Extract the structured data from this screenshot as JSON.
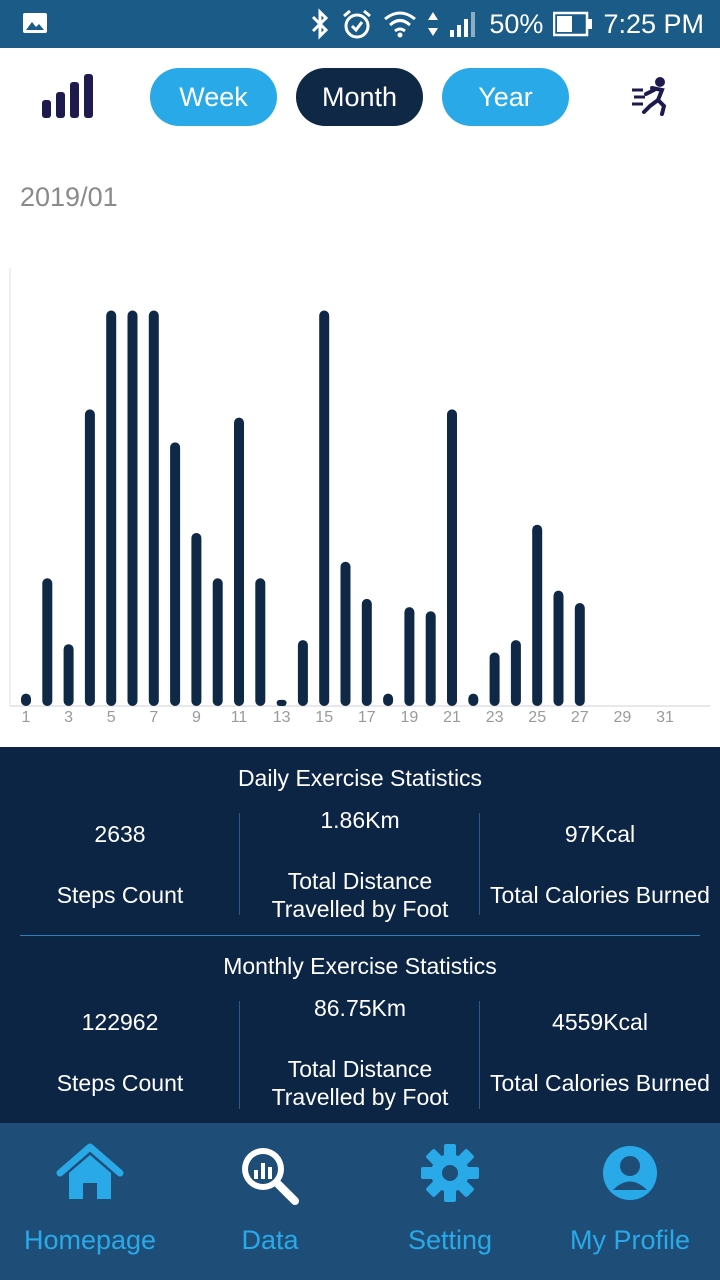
{
  "status_bar": {
    "battery": "50%",
    "time": "7:25 PM"
  },
  "tabs": [
    {
      "label": "Week",
      "active": false
    },
    {
      "label": "Month",
      "active": true
    },
    {
      "label": "Year",
      "active": false
    }
  ],
  "period_label": "2019/01",
  "chart_data": {
    "type": "bar",
    "categories": [
      1,
      2,
      3,
      4,
      5,
      6,
      7,
      8,
      9,
      10,
      11,
      12,
      13,
      14,
      15,
      16,
      17,
      18,
      19,
      20,
      21,
      22,
      23,
      24,
      25,
      26,
      27,
      28,
      29,
      30,
      31
    ],
    "x_tick_labels": [
      "1",
      "3",
      "5",
      "7",
      "9",
      "11",
      "13",
      "15",
      "17",
      "19",
      "21",
      "23",
      "25",
      "27",
      "29",
      "31"
    ],
    "values": [
      3,
      31,
      15,
      72,
      96,
      96,
      96,
      64,
      42,
      31,
      70,
      31,
      1.5,
      16,
      96,
      35,
      26,
      3,
      24,
      23,
      72,
      3,
      13,
      16,
      44,
      28,
      25,
      0,
      0,
      0,
      0
    ],
    "ylim": [
      0,
      100
    ],
    "color": "#0e2845"
  },
  "daily": {
    "title": "Daily Exercise Statistics",
    "steps_value": "2638",
    "steps_label": "Steps Count",
    "distance_value": "1.86Km",
    "distance_label_1": "Total Distance",
    "distance_label_2": "Travelled by Foot",
    "calories_value": "97Kcal",
    "calories_label": "Total Calories Burned"
  },
  "monthly": {
    "title": "Monthly Exercise Statistics",
    "steps_value": "122962",
    "steps_label": "Steps Count",
    "distance_value": "86.75Km",
    "distance_label_1": "Total Distance",
    "distance_label_2": "Travelled by Foot",
    "calories_value": "4559Kcal",
    "calories_label": "Total Calories Burned"
  },
  "nav": [
    {
      "label": "Homepage",
      "icon": "home-icon"
    },
    {
      "label": "Data",
      "icon": "data-search-icon"
    },
    {
      "label": "Setting",
      "icon": "gear-icon"
    },
    {
      "label": "My Profile",
      "icon": "profile-icon"
    }
  ]
}
